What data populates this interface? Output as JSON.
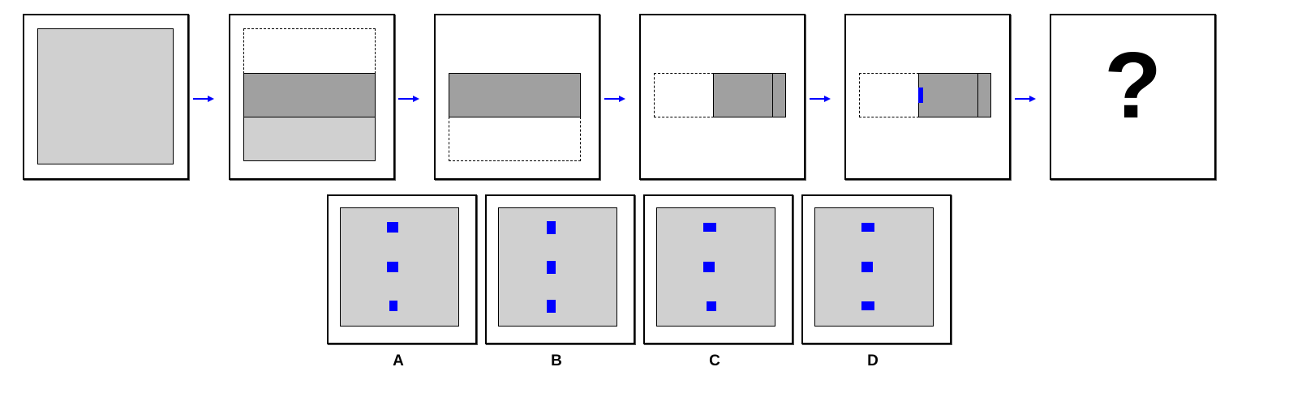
{
  "question_mark": "?",
  "options": [
    {
      "label": "A"
    },
    {
      "label": "B"
    },
    {
      "label": "C"
    },
    {
      "label": "D"
    }
  ],
  "colors": {
    "paper": "#d0d0d0",
    "folded_paper": "#a0a0a0",
    "hole": "#0000ff",
    "arrow": "#0000ff"
  },
  "icons": [
    "right-arrow-icon",
    "question-mark"
  ]
}
